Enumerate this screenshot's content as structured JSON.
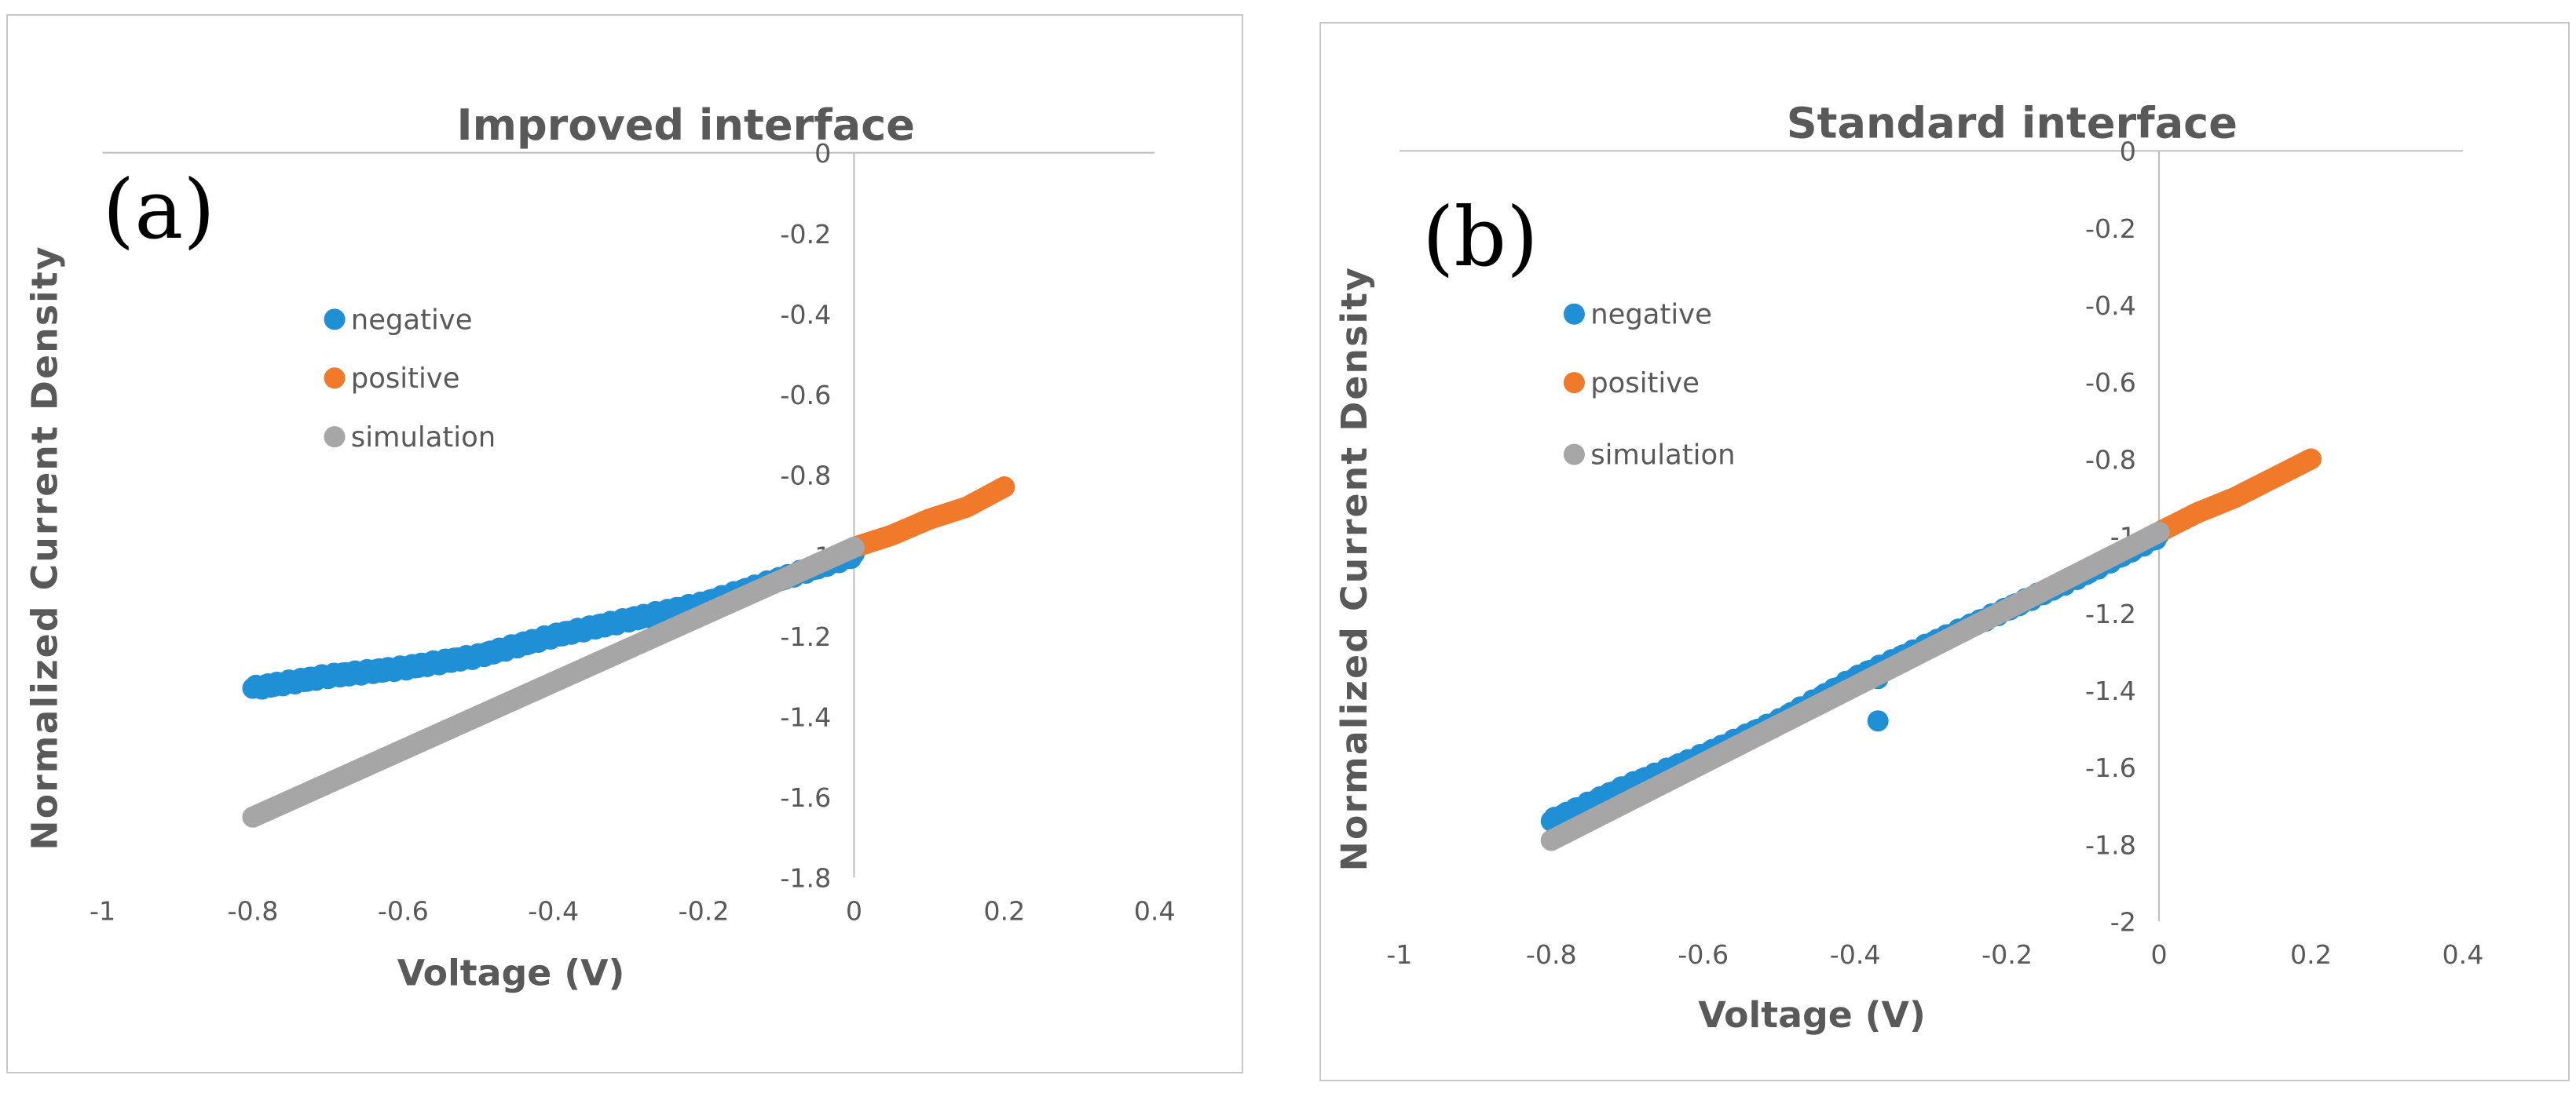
{
  "chart_data": [
    {
      "type": "scatter",
      "panel_label": "(a)",
      "title": "Improved interface",
      "xlabel": "Voltage (V)",
      "ylabel": "Normalized Current Density",
      "xlim": [
        -1,
        0.4
      ],
      "ylim": [
        -1.8,
        0
      ],
      "xticks": [
        -1,
        -0.8,
        -0.6,
        -0.4,
        -0.2,
        0,
        0.2,
        0.4
      ],
      "yticks": [
        0,
        -0.2,
        -0.4,
        -0.6,
        -0.8,
        -1,
        -1.2,
        -1.4,
        -1.6,
        -1.8
      ],
      "legend": [
        "negative",
        "positive",
        "simulation"
      ],
      "legend_position": "upper-left",
      "series": [
        {
          "name": "negative",
          "color": "#1f8fd6",
          "x": [
            -0.8,
            -0.7,
            -0.6,
            -0.5,
            -0.4,
            -0.3,
            -0.2,
            -0.1,
            0
          ],
          "y": [
            -1.33,
            -1.3,
            -1.28,
            -1.25,
            -1.2,
            -1.16,
            -1.12,
            -1.06,
            -1.0
          ]
        },
        {
          "name": "positive",
          "color": "#f07a2a",
          "x": [
            0,
            0.05,
            0.1,
            0.15,
            0.2
          ],
          "y": [
            -0.98,
            -0.95,
            -0.91,
            -0.88,
            -0.83
          ]
        },
        {
          "name": "simulation",
          "color": "#a6a6a6",
          "x": [
            -0.8,
            0
          ],
          "y": [
            -1.65,
            -0.98
          ]
        }
      ]
    },
    {
      "type": "scatter",
      "panel_label": "(b)",
      "title": "Standard interface",
      "xlabel": "Voltage (V)",
      "ylabel": "Normalized Current Density",
      "xlim": [
        -1,
        0.4
      ],
      "ylim": [
        -2,
        0
      ],
      "xticks": [
        -1,
        -0.8,
        -0.6,
        -0.4,
        -0.2,
        0,
        0.2,
        0.4
      ],
      "yticks": [
        0,
        -0.2,
        -0.4,
        -0.6,
        -0.8,
        -1,
        -1.2,
        -1.4,
        -1.6,
        -1.8,
        -2
      ],
      "legend": [
        "negative",
        "positive",
        "simulation"
      ],
      "legend_position": "upper-left",
      "series": [
        {
          "name": "negative",
          "color": "#1f8fd6",
          "x": [
            -0.8,
            -0.7,
            -0.6,
            -0.5,
            -0.4,
            -0.3,
            -0.2,
            -0.1,
            0
          ],
          "y": [
            -1.74,
            -1.65,
            -1.57,
            -1.48,
            -1.37,
            -1.28,
            -1.19,
            -1.1,
            -1.0
          ],
          "outliers": [
            [
              -0.37,
              -1.48
            ],
            [
              -0.37,
              -1.37
            ]
          ]
        },
        {
          "name": "positive",
          "color": "#f07a2a",
          "x": [
            0,
            0.05,
            0.1,
            0.15,
            0.2
          ],
          "y": [
            -0.99,
            -0.94,
            -0.9,
            -0.85,
            -0.8
          ]
        },
        {
          "name": "simulation",
          "color": "#a6a6a6",
          "x": [
            -0.8,
            0
          ],
          "y": [
            -1.79,
            -0.99
          ]
        }
      ]
    }
  ]
}
